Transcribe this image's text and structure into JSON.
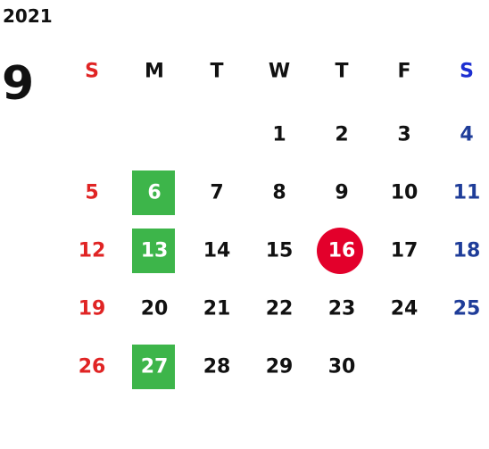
{
  "year": "2021",
  "month": "9",
  "weekdays": [
    "S",
    "M",
    "T",
    "W",
    "T",
    "F",
    "S"
  ],
  "weeks": [
    [
      null,
      null,
      null,
      1,
      2,
      3,
      4
    ],
    [
      5,
      6,
      7,
      8,
      9,
      10,
      11
    ],
    [
      12,
      13,
      14,
      15,
      16,
      17,
      18
    ],
    [
      19,
      20,
      21,
      22,
      23,
      24,
      25
    ],
    [
      26,
      27,
      28,
      29,
      30,
      null,
      null
    ]
  ],
  "sunday_color": "#e02424",
  "saturday_color": "#1f3d99",
  "saturday_header_color": "#1d2fd1",
  "text_color": "#111111",
  "highlights": [
    {
      "shape": "square",
      "color": "#3db54a",
      "days": [
        6,
        13,
        27
      ]
    },
    {
      "shape": "circle",
      "color": "#e3002b",
      "days": [
        16
      ]
    }
  ]
}
